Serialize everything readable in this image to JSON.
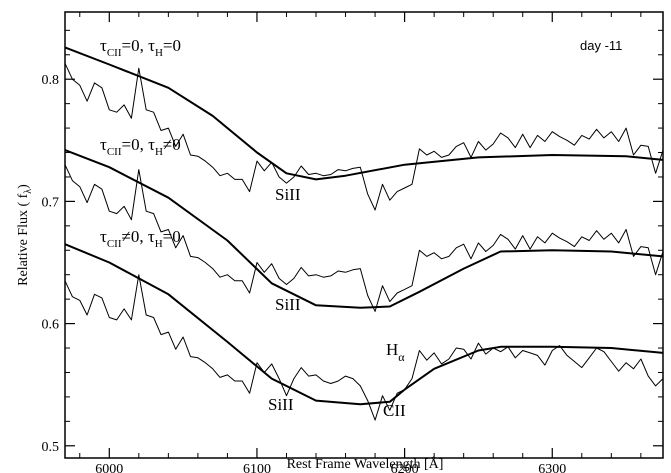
{
  "chart_data": {
    "type": "line",
    "xlabel": "Rest Frame Wavelength [Å]",
    "ylabel": "Relative Flux ( f",
    "ylabel_sub": "λ",
    "ylabel_close": ")",
    "xlim": [
      5970,
      6375
    ],
    "ylim": [
      0.49,
      0.855
    ],
    "xticks": [
      6000,
      6100,
      6200,
      6300
    ],
    "xtick_labels": [
      "6000",
      "6100",
      "6200",
      "6300"
    ],
    "yticks": [
      0.5,
      0.6,
      0.7,
      0.8
    ],
    "ytick_labels": [
      "0.5",
      "0.6",
      "0.7",
      "0.8"
    ],
    "xminor_step": 20,
    "yminor_step": 0.02,
    "grid": false,
    "annotations": {
      "epoch": "day -11",
      "label_top": {
        "tau": "τ",
        "sub1": "CII",
        "mid": "=0, ",
        "tau2": "τ",
        "sub2": "H",
        "end": "=0"
      },
      "label_mid": {
        "tau": "τ",
        "sub1": "CII",
        "mid": "=0, ",
        "tau2": "τ",
        "sub2": "H",
        "end": "≠0"
      },
      "label_bot": {
        "tau": "τ",
        "sub1": "CII",
        "mid": "≠0, ",
        "tau2": "τ",
        "sub2": "H",
        "end": "=0"
      },
      "si_top": "SiII",
      "si_mid": "SiII",
      "si_bot": "SiII",
      "halpha": "H",
      "halpha_sub": "α",
      "cii": "CII"
    },
    "series": [
      {
        "role": "observed",
        "offset": 0.0,
        "x": [
          5970,
          5975,
          5980,
          5985,
          5990,
          5995,
          6000,
          6005,
          6010,
          6015,
          6020,
          6025,
          6030,
          6035,
          6040,
          6045,
          6050,
          6055,
          6060,
          6065,
          6070,
          6075,
          6080,
          6085,
          6090,
          6095,
          6100,
          6105,
          6110,
          6115,
          6120,
          6125,
          6130,
          6135,
          6140,
          6145,
          6150,
          6155,
          6160,
          6165,
          6170,
          6175,
          6180,
          6185,
          6190,
          6195,
          6200,
          6205,
          6210,
          6215,
          6220,
          6225,
          6230,
          6235,
          6240,
          6245,
          6250,
          6255,
          6260,
          6265,
          6270,
          6275,
          6280,
          6285,
          6290,
          6295,
          6300,
          6305,
          6310,
          6315,
          6320,
          6325,
          6330,
          6335,
          6340,
          6345,
          6350,
          6355,
          6360,
          6365,
          6370,
          6375
        ],
        "y": [
          0.813,
          0.8,
          0.795,
          0.782,
          0.797,
          0.793,
          0.775,
          0.773,
          0.779,
          0.768,
          0.809,
          0.775,
          0.773,
          0.758,
          0.76,
          0.745,
          0.755,
          0.738,
          0.737,
          0.733,
          0.728,
          0.721,
          0.723,
          0.718,
          0.718,
          0.708,
          0.733,
          0.725,
          0.732,
          0.72,
          0.715,
          0.72,
          0.729,
          0.722,
          0.723,
          0.721,
          0.722,
          0.726,
          0.725,
          0.727,
          0.728,
          0.706,
          0.693,
          0.714,
          0.701,
          0.708,
          0.711,
          0.714,
          0.743,
          0.738,
          0.741,
          0.736,
          0.738,
          0.745,
          0.748,
          0.736,
          0.749,
          0.742,
          0.747,
          0.756,
          0.752,
          0.744,
          0.755,
          0.744,
          0.754,
          0.749,
          0.757,
          0.753,
          0.75,
          0.746,
          0.754,
          0.751,
          0.759,
          0.752,
          0.757,
          0.749,
          0.76,
          0.738,
          0.746,
          0.745,
          0.723,
          0.742
        ]
      },
      {
        "role": "model",
        "offset": 0.0,
        "x": [
          5970,
          6000,
          6040,
          6070,
          6100,
          6120,
          6140,
          6160,
          6200,
          6250,
          6300,
          6350,
          6375
        ],
        "y": [
          0.826,
          0.812,
          0.793,
          0.77,
          0.74,
          0.723,
          0.718,
          0.721,
          0.73,
          0.736,
          0.738,
          0.737,
          0.734
        ]
      },
      {
        "role": "observed",
        "offset": -0.083,
        "x": [
          5970,
          5975,
          5980,
          5985,
          5990,
          5995,
          6000,
          6005,
          6010,
          6015,
          6020,
          6025,
          6030,
          6035,
          6040,
          6045,
          6050,
          6055,
          6060,
          6065,
          6070,
          6075,
          6080,
          6085,
          6090,
          6095,
          6100,
          6105,
          6110,
          6115,
          6120,
          6125,
          6130,
          6135,
          6140,
          6145,
          6150,
          6155,
          6160,
          6165,
          6170,
          6175,
          6180,
          6185,
          6190,
          6195,
          6200,
          6205,
          6210,
          6215,
          6220,
          6225,
          6230,
          6235,
          6240,
          6245,
          6250,
          6255,
          6260,
          6265,
          6270,
          6275,
          6280,
          6285,
          6290,
          6295,
          6300,
          6305,
          6310,
          6315,
          6320,
          6325,
          6330,
          6335,
          6340,
          6345,
          6350,
          6355,
          6360,
          6365,
          6370,
          6375
        ],
        "y": [
          0.813,
          0.8,
          0.795,
          0.782,
          0.797,
          0.793,
          0.775,
          0.773,
          0.779,
          0.768,
          0.809,
          0.775,
          0.773,
          0.758,
          0.76,
          0.745,
          0.755,
          0.738,
          0.737,
          0.733,
          0.728,
          0.721,
          0.723,
          0.718,
          0.718,
          0.708,
          0.733,
          0.725,
          0.732,
          0.72,
          0.715,
          0.72,
          0.729,
          0.722,
          0.723,
          0.721,
          0.722,
          0.726,
          0.725,
          0.727,
          0.728,
          0.706,
          0.693,
          0.714,
          0.701,
          0.708,
          0.711,
          0.714,
          0.743,
          0.738,
          0.741,
          0.736,
          0.738,
          0.745,
          0.748,
          0.736,
          0.749,
          0.742,
          0.747,
          0.756,
          0.752,
          0.744,
          0.755,
          0.744,
          0.754,
          0.749,
          0.757,
          0.753,
          0.75,
          0.746,
          0.754,
          0.751,
          0.759,
          0.752,
          0.757,
          0.749,
          0.76,
          0.738,
          0.746,
          0.745,
          0.723,
          0.742
        ]
      },
      {
        "role": "model",
        "offset": 0.0,
        "x": [
          5970,
          6000,
          6040,
          6080,
          6110,
          6140,
          6170,
          6190,
          6210,
          6240,
          6265,
          6300,
          6340,
          6375
        ],
        "y": [
          0.742,
          0.728,
          0.703,
          0.668,
          0.633,
          0.615,
          0.613,
          0.614,
          0.626,
          0.645,
          0.659,
          0.66,
          0.659,
          0.655
        ]
      },
      {
        "role": "observed",
        "offset": -0.165,
        "x": [
          5970,
          5975,
          5980,
          5985,
          5990,
          5995,
          6000,
          6005,
          6010,
          6015,
          6020,
          6025,
          6030,
          6035,
          6040,
          6045,
          6050,
          6055,
          6060,
          6065,
          6070,
          6075,
          6080,
          6085,
          6090,
          6095,
          6100,
          6105,
          6110,
          6115,
          6120,
          6125,
          6130,
          6135,
          6140,
          6145,
          6150,
          6155,
          6160,
          6165,
          6170,
          6175,
          6180,
          6185,
          6190,
          6195,
          6200,
          6205,
          6210,
          6215,
          6220,
          6225,
          6230,
          6235,
          6240,
          6245,
          6250,
          6255,
          6260,
          6265,
          6270,
          6275,
          6280,
          6285,
          6290,
          6295,
          6300,
          6305,
          6310,
          6315,
          6320,
          6325,
          6330,
          6335,
          6340,
          6345,
          6350,
          6355,
          6360,
          6365,
          6370,
          6375
        ],
        "y": [
          0.8,
          0.787,
          0.784,
          0.772,
          0.789,
          0.786,
          0.77,
          0.768,
          0.777,
          0.768,
          0.805,
          0.772,
          0.77,
          0.756,
          0.758,
          0.744,
          0.754,
          0.738,
          0.737,
          0.733,
          0.728,
          0.721,
          0.723,
          0.718,
          0.718,
          0.708,
          0.733,
          0.725,
          0.732,
          0.72,
          0.706,
          0.72,
          0.729,
          0.722,
          0.723,
          0.718,
          0.716,
          0.718,
          0.722,
          0.72,
          0.714,
          0.702,
          0.686,
          0.706,
          0.694,
          0.708,
          0.711,
          0.72,
          0.743,
          0.735,
          0.741,
          0.732,
          0.736,
          0.745,
          0.744,
          0.736,
          0.749,
          0.74,
          0.745,
          0.742,
          0.746,
          0.737,
          0.743,
          0.741,
          0.739,
          0.731,
          0.743,
          0.747,
          0.739,
          0.734,
          0.729,
          0.737,
          0.745,
          0.742,
          0.734,
          0.726,
          0.733,
          0.728,
          0.736,
          0.722,
          0.714,
          0.72
        ]
      },
      {
        "role": "model",
        "offset": 0.0,
        "x": [
          5970,
          6000,
          6040,
          6080,
          6110,
          6140,
          6170,
          6190,
          6200,
          6220,
          6250,
          6265,
          6300,
          6340,
          6375
        ],
        "y": [
          0.665,
          0.65,
          0.624,
          0.585,
          0.555,
          0.537,
          0.534,
          0.536,
          0.546,
          0.563,
          0.578,
          0.581,
          0.581,
          0.58,
          0.576
        ]
      }
    ]
  }
}
